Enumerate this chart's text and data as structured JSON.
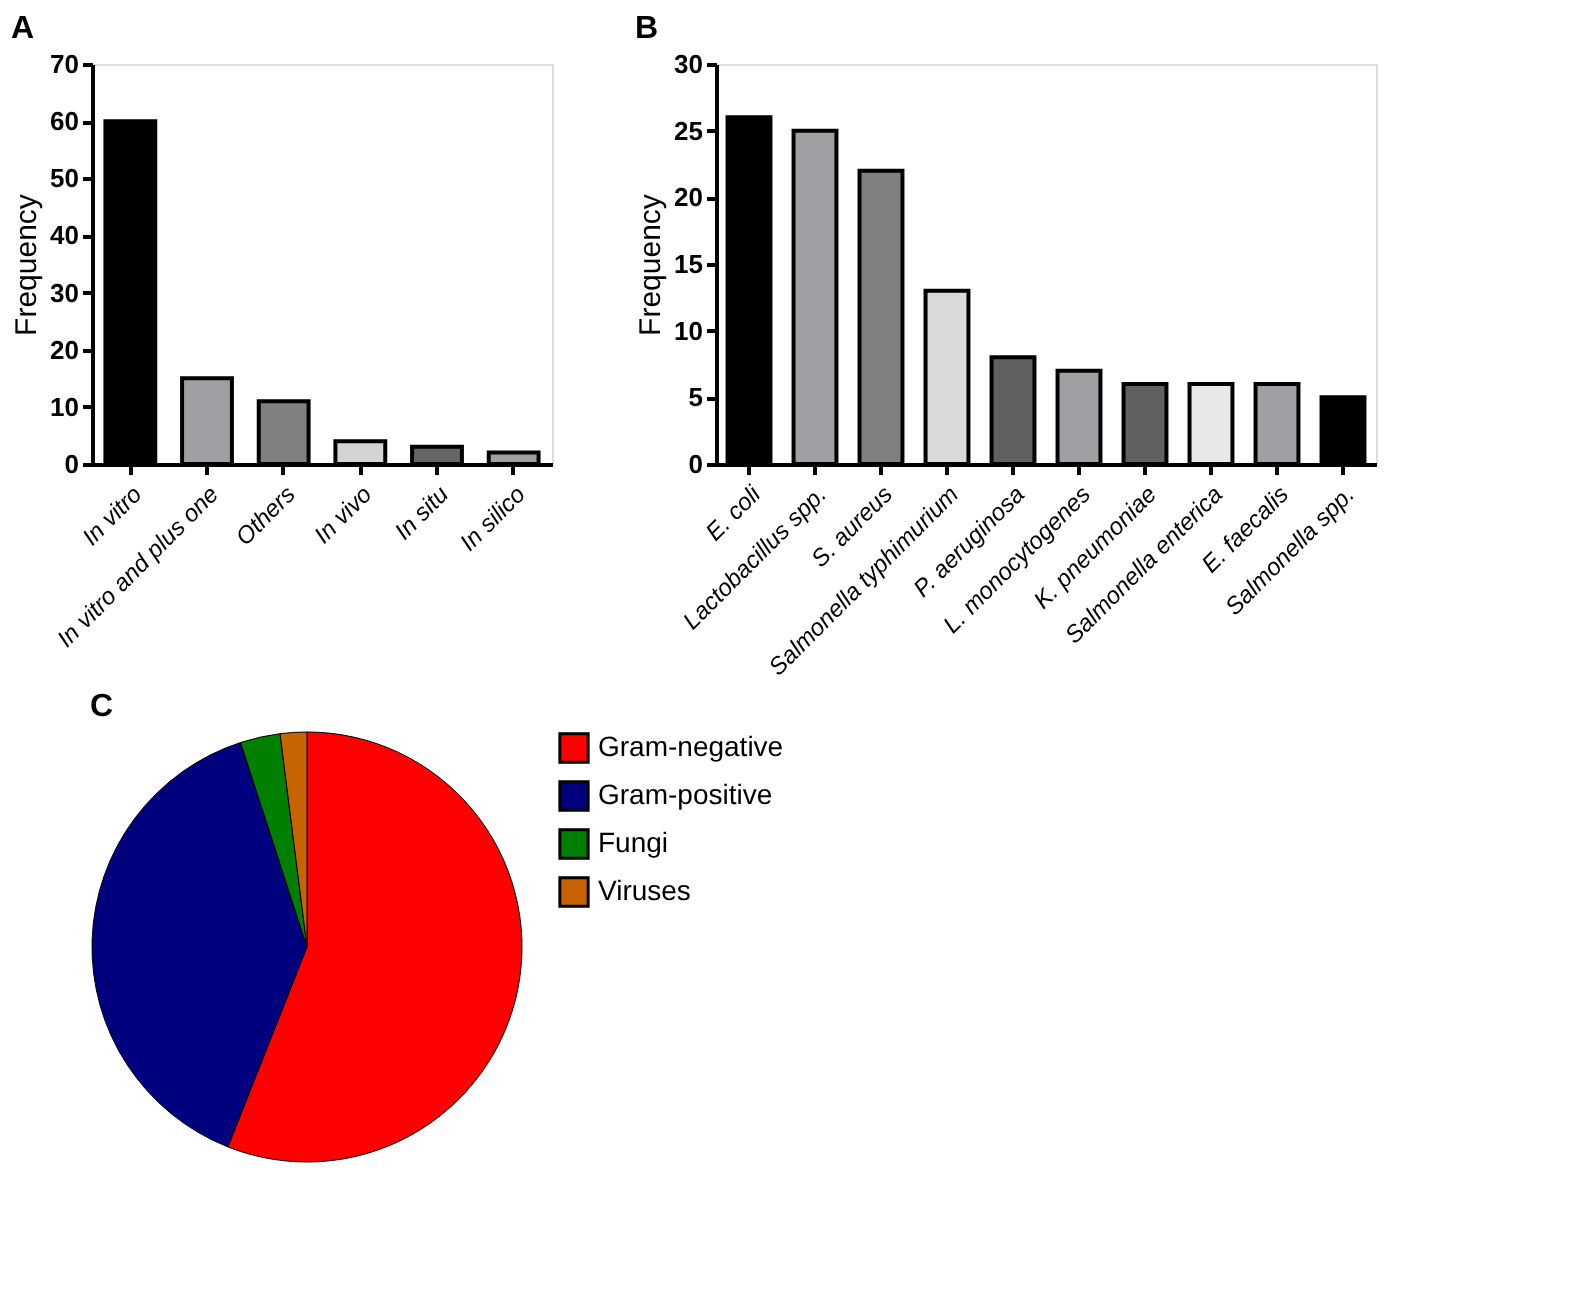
{
  "chart_data": [
    {
      "type": "bar",
      "title": "A",
      "ylabel": "Frequency",
      "categories": [
        "In vitro",
        "In vitro and plus one",
        "Others",
        "In vivo",
        "In situ",
        "In silico"
      ],
      "values": [
        60,
        15,
        11,
        4,
        3,
        2
      ],
      "colors": [
        "#000000",
        "#a0a0a4",
        "#808080",
        "#d4d4d4",
        "#666666",
        "#a0a0a4"
      ],
      "ylim": [
        0,
        70
      ],
      "yticks": [
        0,
        10,
        20,
        30,
        40,
        50,
        60,
        70
      ],
      "grid": false
    },
    {
      "type": "bar",
      "title": "B",
      "ylabel": "Frequency",
      "categories": [
        "E. coli",
        "Lactobacillus spp.",
        "S. aureus",
        "Salmonella typhimurium",
        "P. aeruginosa",
        "L. monocytogenes",
        "K. pneumoniae",
        "Salmonella enterica",
        "E. faecalis",
        "Salmonella spp."
      ],
      "values": [
        26,
        25,
        22,
        13,
        8,
        7,
        6,
        6,
        6,
        5
      ],
      "colors": [
        "#000000",
        "#a0a0a4",
        "#808080",
        "#d9d9d9",
        "#606060",
        "#a0a0a4",
        "#606060",
        "#e8e8e8",
        "#a0a0a4",
        "#000000"
      ],
      "ylim": [
        0,
        30
      ],
      "yticks": [
        0,
        5,
        10,
        15,
        20,
        25,
        30
      ],
      "grid": false
    },
    {
      "type": "pie",
      "title": "C",
      "categories": [
        "Gram-negative",
        "Gram-positive",
        "Fungi",
        "Viruses"
      ],
      "values": [
        56,
        39,
        3,
        2
      ],
      "colors": [
        "#ff0000",
        "#00007f",
        "#007f00",
        "#c86400"
      ],
      "legend": "right"
    }
  ]
}
